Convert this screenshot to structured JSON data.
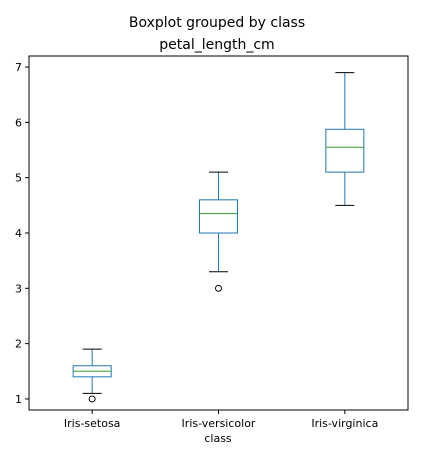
{
  "chart_data": {
    "type": "boxplot",
    "suptitle": "Boxplot grouped by class",
    "title": "petal_length_cm",
    "xlabel": "class",
    "ylabel": "",
    "ylim": [
      0.8,
      7.2
    ],
    "yticks": [
      1,
      2,
      3,
      4,
      5,
      6,
      7
    ],
    "grid": false,
    "categories": [
      "Iris-setosa",
      "Iris-versicolor",
      "Iris-virginica"
    ],
    "boxes": [
      {
        "whisker_low": 1.1,
        "q1": 1.4,
        "median": 1.5,
        "q3": 1.6,
        "whisker_high": 1.9,
        "outliers": [
          1.0
        ]
      },
      {
        "whisker_low": 3.3,
        "q1": 4.0,
        "median": 4.35,
        "q3": 4.6,
        "whisker_high": 5.1,
        "outliers": [
          3.0
        ]
      },
      {
        "whisker_low": 4.5,
        "q1": 5.1,
        "median": 5.55,
        "q3": 5.875,
        "whisker_high": 6.9,
        "outliers": []
      }
    ],
    "colors": {
      "box": "#1f77b4",
      "median": "#2ca02c",
      "axes": "#000000"
    }
  }
}
